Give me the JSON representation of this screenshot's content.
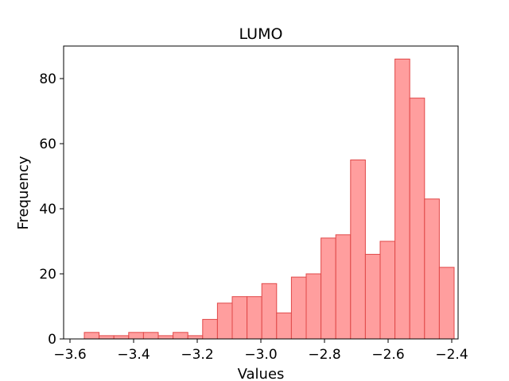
{
  "chart_data": {
    "type": "bar",
    "title": "LUMO",
    "xlabel": "Values",
    "ylabel": "Frequency",
    "xlim": [
      -3.62,
      -2.38
    ],
    "ylim": [
      0,
      90
    ],
    "xticks": [
      -3.6,
      -3.4,
      -3.2,
      -3.0,
      -2.8,
      -2.6,
      -2.4
    ],
    "xtick_labels": [
      "−3.6",
      "−3.4",
      "−3.2",
      "−3.0",
      "−2.8",
      "−2.6",
      "−2.4"
    ],
    "yticks": [
      0,
      20,
      40,
      60,
      80
    ],
    "ytick_labels": [
      "0",
      "20",
      "40",
      "60",
      "80"
    ],
    "grid": false,
    "bar_fill": "#ff9e9e",
    "bar_edge": "#e04848",
    "bins": [
      {
        "x0": -3.555,
        "x1": -3.5085,
        "count": 2
      },
      {
        "x0": -3.5085,
        "x1": -3.462,
        "count": 1
      },
      {
        "x0": -3.462,
        "x1": -3.4155,
        "count": 1
      },
      {
        "x0": -3.4155,
        "x1": -3.369,
        "count": 2
      },
      {
        "x0": -3.369,
        "x1": -3.3225,
        "count": 2
      },
      {
        "x0": -3.3225,
        "x1": -3.276,
        "count": 1
      },
      {
        "x0": -3.276,
        "x1": -3.2295,
        "count": 2
      },
      {
        "x0": -3.2295,
        "x1": -3.183,
        "count": 1
      },
      {
        "x0": -3.183,
        "x1": -3.1365,
        "count": 6
      },
      {
        "x0": -3.1365,
        "x1": -3.09,
        "count": 11
      },
      {
        "x0": -3.09,
        "x1": -3.0435,
        "count": 13
      },
      {
        "x0": -3.0435,
        "x1": -2.997,
        "count": 13
      },
      {
        "x0": -2.997,
        "x1": -2.9505,
        "count": 17
      },
      {
        "x0": -2.9505,
        "x1": -2.904,
        "count": 8
      },
      {
        "x0": -2.904,
        "x1": -2.8575,
        "count": 19
      },
      {
        "x0": -2.8575,
        "x1": -2.811,
        "count": 20
      },
      {
        "x0": -2.811,
        "x1": -2.7645,
        "count": 31
      },
      {
        "x0": -2.7645,
        "x1": -2.718,
        "count": 32
      },
      {
        "x0": -2.718,
        "x1": -2.6715,
        "count": 55
      },
      {
        "x0": -2.6715,
        "x1": -2.625,
        "count": 26
      },
      {
        "x0": -2.625,
        "x1": -2.5785,
        "count": 30
      },
      {
        "x0": -2.5785,
        "x1": -2.532,
        "count": 86
      },
      {
        "x0": -2.532,
        "x1": -2.4855,
        "count": 74
      },
      {
        "x0": -2.4855,
        "x1": -2.439,
        "count": 43
      },
      {
        "x0": -2.439,
        "x1": -2.3925,
        "count": 22
      }
    ]
  }
}
